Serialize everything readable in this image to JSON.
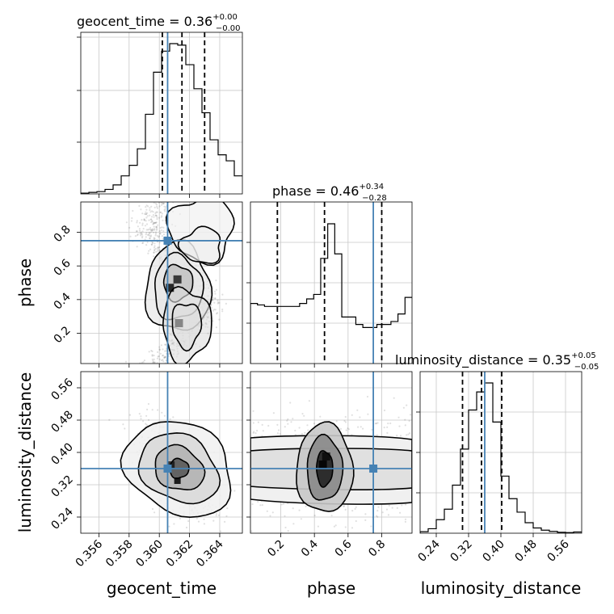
{
  "chart_data": {
    "type": "corner",
    "truth_color": "#4682b4",
    "params": [
      {
        "name": "geocent_time",
        "axis_label": "geocent_time",
        "range": [
          0.3548,
          0.3655
        ],
        "ticks": [
          0.356,
          0.358,
          0.36,
          0.362,
          0.364
        ],
        "tick_labels": [
          "0.356",
          "0.358",
          "0.360",
          "0.362",
          "0.364"
        ],
        "title_prefix": "geocent_time = 0.36",
        "title_sup": "+0.00",
        "title_sub": "−0.00",
        "quantiles": [
          0.3602,
          0.3615,
          0.363
        ],
        "truth": 0.36055,
        "hist": [
          0.005,
          0.01,
          0.015,
          0.03,
          0.06,
          0.12,
          0.19,
          0.3,
          0.53,
          0.81,
          0.95,
          1.0,
          0.99,
          0.86,
          0.7,
          0.54,
          0.36,
          0.26,
          0.22,
          0.12
        ]
      },
      {
        "name": "phase",
        "axis_label": "phase",
        "range": [
          0.02,
          0.98
        ],
        "ticks": [
          0.2,
          0.4,
          0.6,
          0.8
        ],
        "tick_labels": [
          "0.2",
          "0.4",
          "0.6",
          "0.8"
        ],
        "title_prefix": "phase = 0.46",
        "title_sup": "+0.34",
        "title_sub": "−0.28",
        "quantiles": [
          0.18,
          0.46,
          0.8
        ],
        "truth": 0.75,
        "hist": [
          0.4,
          0.39,
          0.38,
          0.38,
          0.38,
          0.38,
          0.38,
          0.4,
          0.43,
          0.46,
          0.7,
          0.93,
          0.73,
          0.31,
          0.31,
          0.26,
          0.24,
          0.24,
          0.26,
          0.26,
          0.28,
          0.33,
          0.44
        ]
      },
      {
        "name": "luminosity_distance",
        "axis_label": "luminosity_distance",
        "range": [
          0.2,
          0.6
        ],
        "ticks": [
          0.24,
          0.32,
          0.4,
          0.48,
          0.56
        ],
        "tick_labels": [
          "0.24",
          "0.32",
          "0.40",
          "0.48",
          "0.56"
        ],
        "title_prefix": "luminosity_distance = 0.35",
        "title_sup": "+0.05",
        "title_sub": "−0.05",
        "quantiles": [
          0.305,
          0.352,
          0.402
        ],
        "truth": 0.36,
        "hist": [
          0.01,
          0.03,
          0.09,
          0.16,
          0.32,
          0.56,
          0.82,
          0.94,
          1.0,
          0.74,
          0.38,
          0.23,
          0.14,
          0.07,
          0.035,
          0.02,
          0.012,
          0.006,
          0.004,
          0.008
        ]
      }
    ],
    "pairs": [
      {
        "x": "geocent_time",
        "y": "phase",
        "truth": [
          0.36055,
          0.75
        ],
        "density_peaks": [
          [
            0.3607,
            0.47,
            1.0
          ],
          [
            0.3612,
            0.52,
            0.9
          ],
          [
            0.3613,
            0.26,
            0.5
          ]
        ],
        "contour_levels": 3
      },
      {
        "x": "geocent_time",
        "y": "luminosity_distance",
        "truth": [
          0.36055,
          0.36
        ],
        "density_peaks": [
          [
            0.3612,
            0.33,
            1.0
          ],
          [
            0.3608,
            0.37,
            0.8
          ]
        ],
        "contour_levels": 3
      },
      {
        "x": "phase",
        "y": "luminosity_distance",
        "truth": [
          0.75,
          0.36
        ],
        "density_peaks": [
          [
            0.45,
            0.37,
            1.0
          ],
          [
            0.47,
            0.39,
            0.8
          ]
        ],
        "contour_levels": 3
      }
    ]
  }
}
